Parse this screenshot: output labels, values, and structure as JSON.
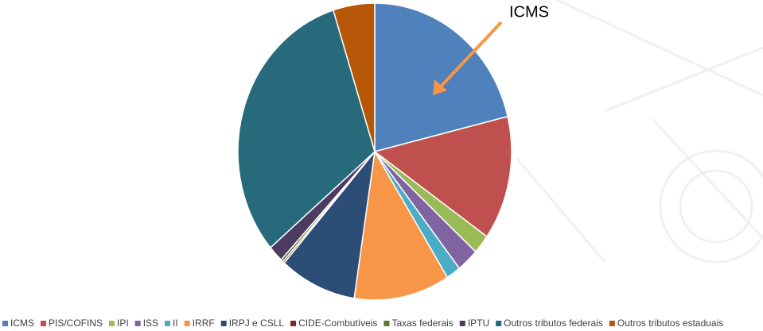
{
  "chart_data": {
    "type": "pie",
    "annotation": "ICMS",
    "categories": [
      "ICMS",
      "PIS/COFINS",
      "IPI",
      "ISS",
      "II",
      "IRRF",
      "IRPJ e CSLL",
      "CIDE-Combutíveis",
      "Taxas federais",
      "IPTU",
      "Outros tributos federais",
      "Outros tributos estaduais"
    ],
    "values": [
      21.2,
      13.5,
      2.1,
      2.6,
      1.7,
      11.3,
      9.1,
      0.2,
      0.3,
      1.8,
      31.3,
      4.9
    ],
    "colors": [
      "#4f81bd",
      "#c0504d",
      "#9bbb59",
      "#8064a2",
      "#4bacc6",
      "#f79646",
      "#2c4d75",
      "#772c2a",
      "#5f7530",
      "#4d3b62",
      "#276a7c",
      "#b65708"
    ],
    "legend": "bottom"
  }
}
